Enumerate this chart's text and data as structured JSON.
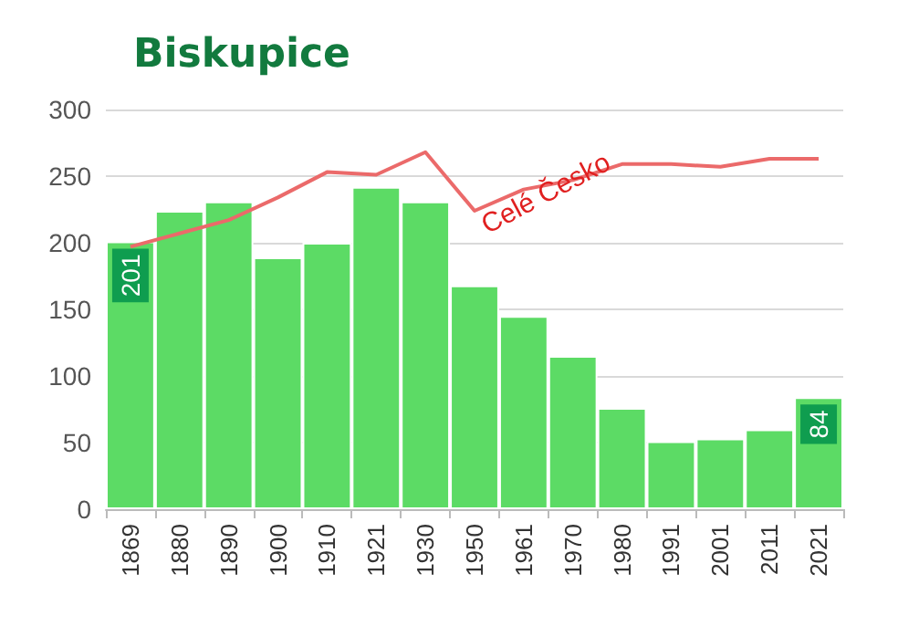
{
  "chart_data": {
    "type": "bar",
    "title": "Biskupice",
    "categories": [
      "1869",
      "1880",
      "1890",
      "1900",
      "1910",
      "1921",
      "1930",
      "1950",
      "1961",
      "1970",
      "1980",
      "1991",
      "2001",
      "2011",
      "2021"
    ],
    "series": [
      {
        "color": "#5cdb65",
        "values": [
          201,
          224,
          231,
          189,
          200,
          242,
          231,
          168,
          145,
          115,
          76,
          51,
          53,
          60,
          84
        ],
        "value_labels": [
          "201",
          null,
          null,
          null,
          null,
          null,
          null,
          null,
          null,
          null,
          null,
          null,
          null,
          null,
          "84"
        ]
      },
      {
        "type": "line",
        "name": "Celé Česko",
        "color": "#eb6a6a",
        "values": [
          197,
          207,
          217,
          234,
          253,
          251,
          268,
          224,
          240,
          247,
          259,
          259,
          257,
          263,
          263
        ]
      }
    ],
    "ylim": [
      0,
      300
    ],
    "yticks": [
      0,
      50,
      100,
      150,
      200,
      250,
      300
    ],
    "grid": "y",
    "legend": false,
    "marker": "none",
    "line_style": "solid"
  }
}
